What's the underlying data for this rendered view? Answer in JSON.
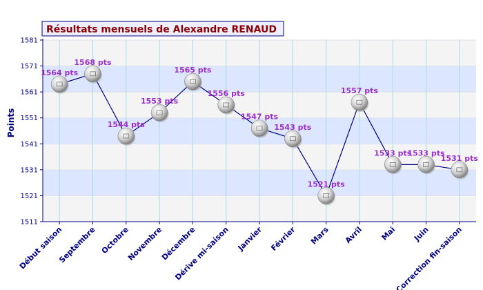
{
  "chart_data": {
    "type": "line",
    "title": "Résultats mensuels de Alexandre RENAUD",
    "xlabel": "",
    "ylabel": "Points",
    "ylim": [
      1511,
      1581
    ],
    "yticks": [
      1511,
      1521,
      1531,
      1541,
      1551,
      1561,
      1571,
      1581
    ],
    "grid": true,
    "categories": [
      "Début saison",
      "Septembre",
      "Octobre",
      "Novembre",
      "Décembre",
      "Dérive mi-saison",
      "Janvier",
      "Février",
      "Mars",
      "Avril",
      "Mai",
      "Juin",
      "Correction fin-saison"
    ],
    "values": [
      1564,
      1568,
      1544,
      1553,
      1565,
      1556,
      1547,
      1543,
      1521,
      1557,
      1533,
      1533,
      1531
    ],
    "data_labels": [
      "1564 pts",
      "1568 pts",
      "1544 pts",
      "1553 pts",
      "1565 pts",
      "1556 pts",
      "1547 pts",
      "1543 pts",
      "1521 pts",
      "1557 pts",
      "1533 pts",
      "1533 pts",
      "1531 pts"
    ],
    "colors": {
      "line": "#000080",
      "band_light": "#f4f4f4",
      "band_blue": "#dde6ff",
      "vgrid": "#a8d8e8",
      "title": "#8b0000",
      "axis_text": "#000080",
      "label": "#9b30c8",
      "title_bg": "#eeeeff"
    }
  }
}
